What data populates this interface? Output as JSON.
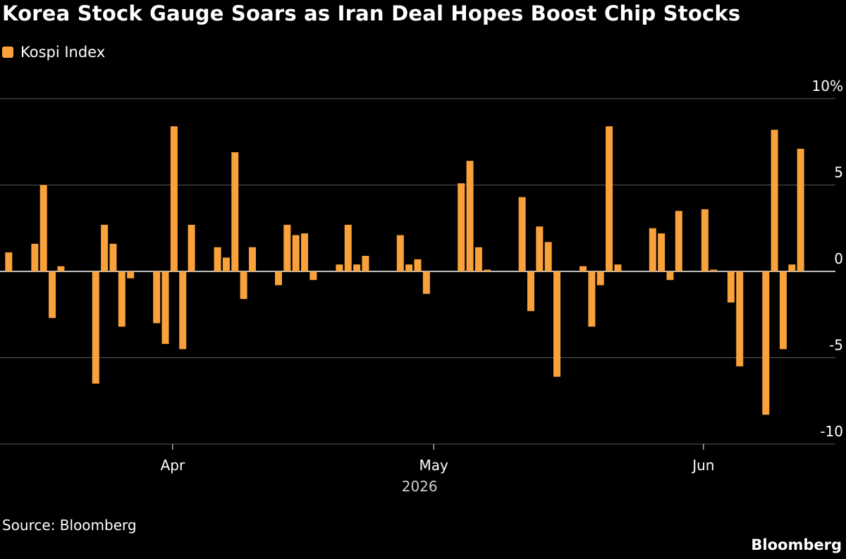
{
  "colors": {
    "background": "#000000",
    "bar": "#f9a13b",
    "grid": "#5a5a5a",
    "zero": "#ffffff",
    "text": "#ffffff",
    "muted": "#cfcfcf"
  },
  "chart_data": {
    "type": "bar",
    "title": "Korea Stock Gauge Soars as Iran Deal Hopes Boost Chip Stocks",
    "series": [
      {
        "name": "Kospi Index",
        "points": [
          [
            "2026-03-13",
            1.1
          ],
          [
            "2026-03-16",
            1.6
          ],
          [
            "2026-03-17",
            5.0
          ],
          [
            "2026-03-18",
            -2.7
          ],
          [
            "2026-03-19",
            0.3
          ],
          [
            "2026-03-23",
            -6.5
          ],
          [
            "2026-03-24",
            2.7
          ],
          [
            "2026-03-25",
            1.6
          ],
          [
            "2026-03-26",
            -3.2
          ],
          [
            "2026-03-27",
            -0.4
          ],
          [
            "2026-03-30",
            -3.0
          ],
          [
            "2026-03-31",
            -4.2
          ],
          [
            "2026-04-01",
            8.4
          ],
          [
            "2026-04-02",
            -4.5
          ],
          [
            "2026-04-03",
            2.7
          ],
          [
            "2026-04-06",
            1.4
          ],
          [
            "2026-04-07",
            0.8
          ],
          [
            "2026-04-08",
            6.9
          ],
          [
            "2026-04-09",
            -1.6
          ],
          [
            "2026-04-10",
            1.4
          ],
          [
            "2026-04-13",
            -0.8
          ],
          [
            "2026-04-14",
            2.7
          ],
          [
            "2026-04-15",
            2.1
          ],
          [
            "2026-04-16",
            2.2
          ],
          [
            "2026-04-17",
            -0.5
          ],
          [
            "2026-04-20",
            0.4
          ],
          [
            "2026-04-21",
            2.7
          ],
          [
            "2026-04-22",
            0.4
          ],
          [
            "2026-04-23",
            0.9
          ],
          [
            "2026-04-27",
            2.1
          ],
          [
            "2026-04-28",
            0.4
          ],
          [
            "2026-04-29",
            0.7
          ],
          [
            "2026-04-30",
            -1.3
          ],
          [
            "2026-05-04",
            5.1
          ],
          [
            "2026-05-05",
            6.4
          ],
          [
            "2026-05-06",
            1.4
          ],
          [
            "2026-05-07",
            0.1
          ],
          [
            "2026-05-11",
            4.3
          ],
          [
            "2026-05-12",
            -2.3
          ],
          [
            "2026-05-13",
            2.6
          ],
          [
            "2026-05-14",
            1.7
          ],
          [
            "2026-05-15",
            -6.1
          ],
          [
            "2026-05-18",
            0.3
          ],
          [
            "2026-05-19",
            -3.2
          ],
          [
            "2026-05-20",
            -0.8
          ],
          [
            "2026-05-21",
            8.4
          ],
          [
            "2026-05-22",
            0.4
          ],
          [
            "2026-05-26",
            2.5
          ],
          [
            "2026-05-27",
            2.2
          ],
          [
            "2026-05-28",
            -0.5
          ],
          [
            "2026-05-29",
            3.5
          ],
          [
            "2026-06-01",
            3.6
          ],
          [
            "2026-06-02",
            0.1
          ],
          [
            "2026-06-04",
            -1.8
          ],
          [
            "2026-06-05",
            -5.5
          ],
          [
            "2026-06-08",
            -8.3
          ],
          [
            "2026-06-09",
            8.2
          ],
          [
            "2026-06-10",
            -4.5
          ],
          [
            "2026-06-11",
            0.4
          ],
          [
            "2026-06-12",
            7.1
          ]
        ]
      }
    ],
    "x_ticks": [
      {
        "date": "2026-04-01",
        "label": "Apr"
      },
      {
        "date": "2026-05-01",
        "label": "May"
      },
      {
        "date": "2026-06-01",
        "label": "Jun"
      }
    ],
    "x_sublabel": "2026",
    "y_ticks": [
      {
        "value": 10,
        "label": "10%"
      },
      {
        "value": 5,
        "label": "5"
      },
      {
        "value": 0,
        "label": "0"
      },
      {
        "value": -5,
        "label": "-5"
      },
      {
        "value": -10,
        "label": "-10"
      }
    ],
    "ylim": [
      -10,
      10
    ],
    "xlim": [
      "2026-03-12",
      "2026-06-16"
    ],
    "grid": true,
    "legend_position": "top-left"
  },
  "footer": {
    "source": "Source: Bloomberg",
    "brand": "Bloomberg"
  }
}
